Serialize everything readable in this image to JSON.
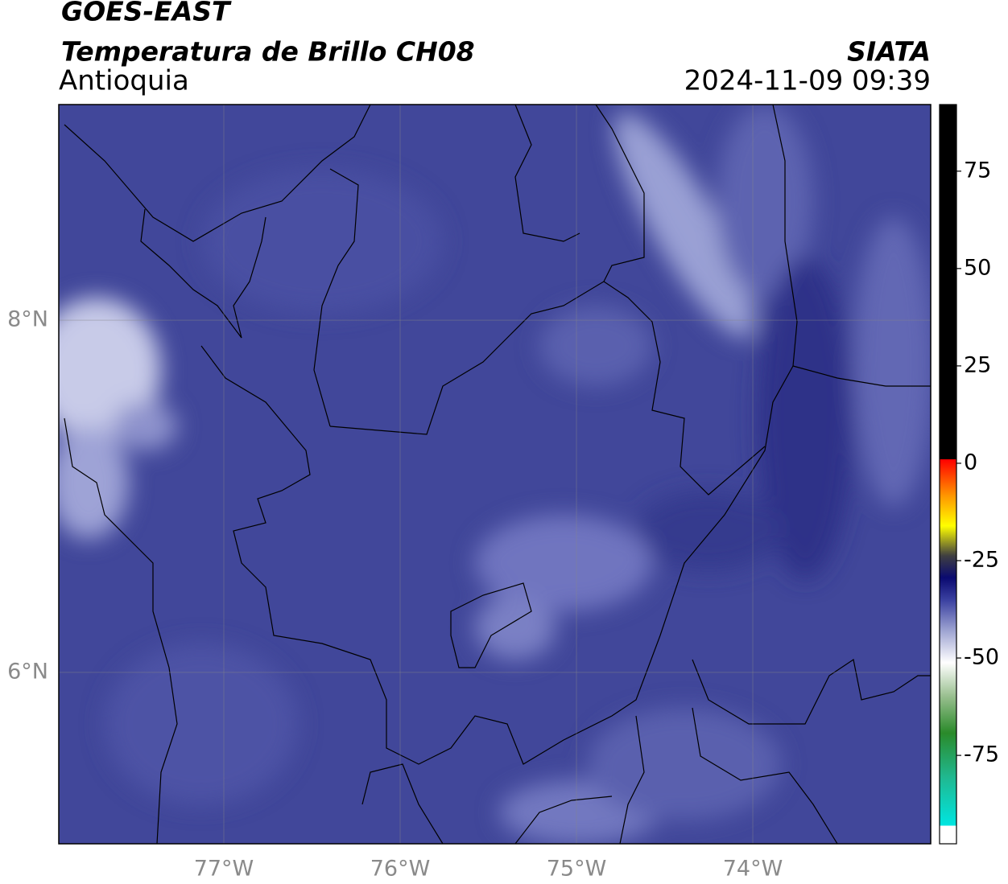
{
  "header": {
    "title": "GOES-EAST",
    "product": "Temperatura de Brillo CH08",
    "region": "Antioquia",
    "source": "SIATA",
    "timestamp": "2024-11-09 09:39"
  },
  "map": {
    "lonlim": [
      -77.936,
      -72.991
    ],
    "latlim": [
      5.027,
      9.224
    ],
    "grid": true,
    "lonticks": [
      {
        "value": -77,
        "label": "77°W"
      },
      {
        "value": -76,
        "label": "76°W"
      },
      {
        "value": -75,
        "label": "75°W"
      },
      {
        "value": -74,
        "label": "74°W"
      }
    ],
    "latticks": [
      {
        "value": 6,
        "label": "6°N"
      },
      {
        "value": 8,
        "label": "8°N"
      }
    ]
  },
  "colorbar": {
    "lim": [
      -97.7,
      92.1
    ],
    "ticks": [
      -75,
      -50,
      -25,
      0,
      25,
      50,
      75
    ]
  }
}
